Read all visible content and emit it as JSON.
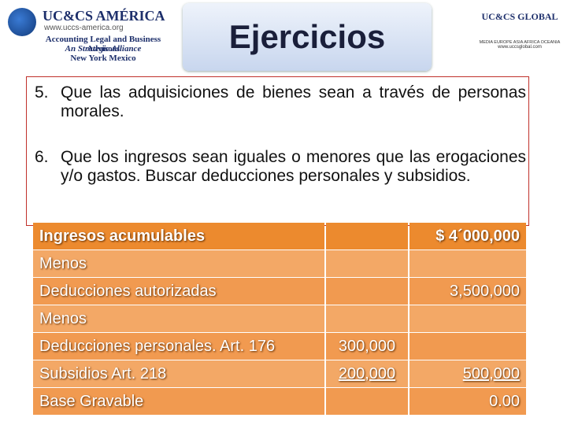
{
  "header": {
    "title": "Ejercicios",
    "left_logo": {
      "brand": "UC&CS AMÉRICA",
      "url": "www.uccs-america.org",
      "tagline": "Accounting Legal and Business Advisors",
      "alliance": "An Strategic Alliance",
      "cities": "New York  Mexico"
    },
    "right_logo": {
      "brand": "UC&CS GLOBAL",
      "regions": "MEDIA EUROPE ASIA AFRICA OCEANIA",
      "url": "www.uccsglobal.com"
    }
  },
  "items": [
    {
      "number": "5.",
      "text": "Que las adquisiciones de bienes sean a través de personas morales."
    },
    {
      "number": "6.",
      "text": "Que los ingresos sean iguales o menores que las erogaciones y/o gastos. Buscar deducciones personales y subsidios."
    }
  ],
  "table": {
    "rows": [
      {
        "label": "Ingresos acumulables",
        "total": "$ 4´000,000"
      },
      {
        "label": "Menos"
      },
      {
        "label": "Deducciones autorizadas",
        "total": "3,500,000"
      },
      {
        "label": "Menos"
      },
      {
        "label": "Deducciones personales. Art. 176",
        "amount": "300,000"
      },
      {
        "label": "Subsidios Art. 218",
        "amount": "200,000",
        "total": "500,000"
      },
      {
        "label": "Base Gravable",
        "total": "0.00"
      }
    ]
  }
}
